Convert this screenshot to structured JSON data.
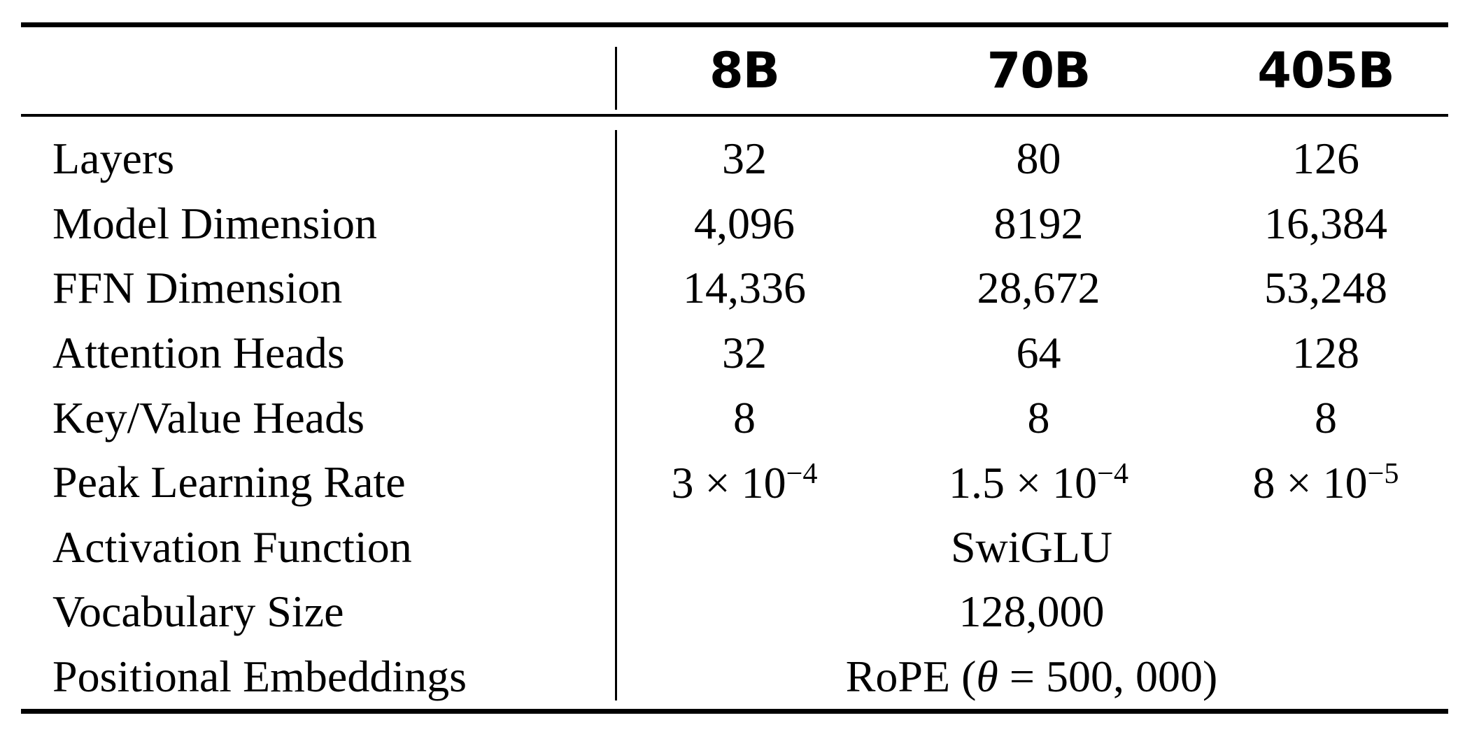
{
  "colors": {
    "background": "#ffffff",
    "text": "#000000",
    "rules": "#000000"
  },
  "table": {
    "columns": [
      "8B",
      "70B",
      "405B"
    ],
    "rows": [
      {
        "label": "Layers",
        "values": [
          "32",
          "80",
          "126"
        ]
      },
      {
        "label": "Model Dimension",
        "values": [
          "4,096",
          "8192",
          "16,384"
        ]
      },
      {
        "label": "FFN Dimension",
        "values": [
          "14,336",
          "28,672",
          "53,248"
        ]
      },
      {
        "label": "Attention Heads",
        "values": [
          "32",
          "64",
          "128"
        ]
      },
      {
        "label": "Key/Value Heads",
        "values": [
          "8",
          "8",
          "8"
        ]
      },
      {
        "label": "Peak Learning Rate",
        "values": [
          {
            "mantissa": "3 × 10",
            "exponent": "−4"
          },
          {
            "mantissa": "1.5 × 10",
            "exponent": "−4"
          },
          {
            "mantissa": "8 × 10",
            "exponent": "−5"
          }
        ]
      },
      {
        "label": "Activation Function",
        "span_value": "SwiGLU"
      },
      {
        "label": "Vocabulary Size",
        "span_value": "128,000"
      },
      {
        "label": "Positional Embeddings",
        "span_parts": {
          "prefix": "RoPE (",
          "theta": "θ",
          "suffix": " = 500, 000)"
        }
      }
    ]
  }
}
